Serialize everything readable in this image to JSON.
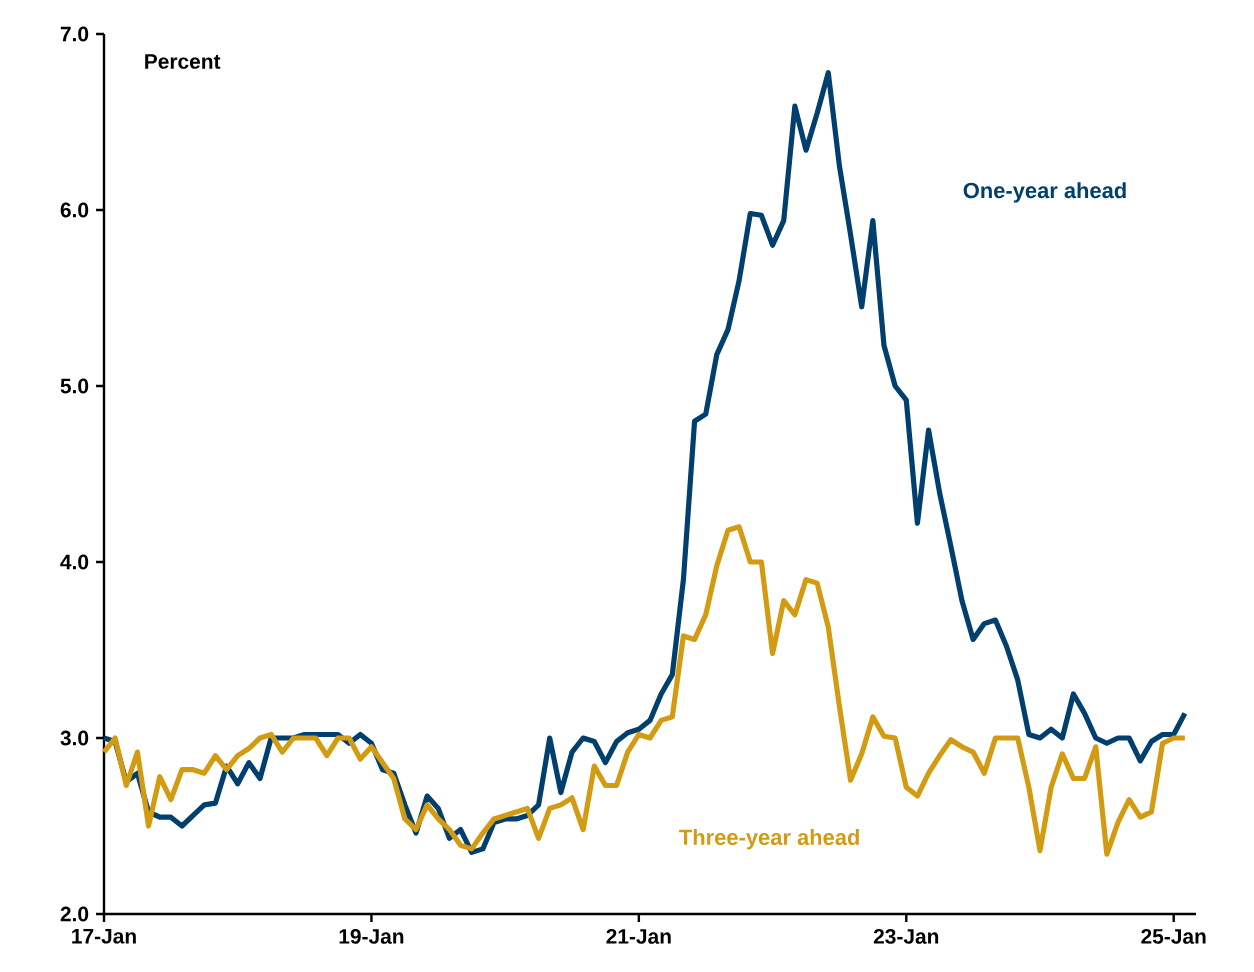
{
  "chart_data": {
    "type": "line",
    "ylabel": "Percent",
    "x": [
      "2017-01",
      "2017-02",
      "2017-03",
      "2017-04",
      "2017-05",
      "2017-06",
      "2017-07",
      "2017-08",
      "2017-09",
      "2017-10",
      "2017-11",
      "2017-12",
      "2018-01",
      "2018-02",
      "2018-03",
      "2018-04",
      "2018-05",
      "2018-06",
      "2018-07",
      "2018-08",
      "2018-09",
      "2018-10",
      "2018-11",
      "2018-12",
      "2019-01",
      "2019-02",
      "2019-03",
      "2019-04",
      "2019-05",
      "2019-06",
      "2019-07",
      "2019-08",
      "2019-09",
      "2019-10",
      "2019-11",
      "2019-12",
      "2020-01",
      "2020-02",
      "2020-03",
      "2020-04",
      "2020-05",
      "2020-06",
      "2020-07",
      "2020-08",
      "2020-09",
      "2020-10",
      "2020-11",
      "2020-12",
      "2021-01",
      "2021-02",
      "2021-03",
      "2021-04",
      "2021-05",
      "2021-06",
      "2021-07",
      "2021-08",
      "2021-09",
      "2021-10",
      "2021-11",
      "2021-12",
      "2022-01",
      "2022-02",
      "2022-03",
      "2022-04",
      "2022-05",
      "2022-06",
      "2022-07",
      "2022-08",
      "2022-09",
      "2022-10",
      "2022-11",
      "2022-12",
      "2023-01",
      "2023-02",
      "2023-03",
      "2023-04",
      "2023-05",
      "2023-06",
      "2023-07",
      "2023-08",
      "2023-09",
      "2023-10",
      "2023-11",
      "2023-12",
      "2024-01",
      "2024-02",
      "2024-03",
      "2024-04",
      "2024-05",
      "2024-06",
      "2024-07",
      "2024-08",
      "2024-09",
      "2024-10",
      "2024-11",
      "2024-12",
      "2025-01",
      "2025-02"
    ],
    "series": [
      {
        "name": "One-year ahead",
        "color": "#003f6e",
        "values": [
          3.0,
          2.98,
          2.75,
          2.8,
          2.58,
          2.55,
          2.55,
          2.5,
          2.56,
          2.62,
          2.63,
          2.84,
          2.74,
          2.86,
          2.77,
          3.0,
          3.0,
          3.0,
          3.02,
          3.02,
          3.02,
          3.02,
          2.97,
          3.02,
          2.97,
          2.82,
          2.8,
          2.62,
          2.46,
          2.67,
          2.6,
          2.43,
          2.48,
          2.35,
          2.37,
          2.52,
          2.54,
          2.54,
          2.56,
          2.62,
          3.0,
          2.69,
          2.92,
          3.0,
          2.98,
          2.86,
          2.98,
          3.03,
          3.05,
          3.1,
          3.25,
          3.36,
          3.9,
          4.8,
          4.84,
          5.18,
          5.32,
          5.6,
          5.98,
          5.97,
          5.8,
          5.94,
          6.59,
          6.34,
          6.55,
          6.78,
          6.25,
          5.86,
          5.45,
          5.94,
          5.23,
          5.0,
          4.92,
          4.22,
          4.75,
          4.39,
          4.09,
          3.78,
          3.56,
          3.65,
          3.67,
          3.52,
          3.33,
          3.02,
          3.0,
          3.05,
          3.0,
          3.25,
          3.14,
          3.0,
          2.97,
          3.0,
          3.0,
          2.87,
          2.98,
          3.02,
          3.02,
          3.14
        ]
      },
      {
        "name": "Three-year ahead",
        "color": "#d39b12",
        "values": [
          2.92,
          3.0,
          2.73,
          2.92,
          2.5,
          2.78,
          2.65,
          2.82,
          2.82,
          2.8,
          2.9,
          2.82,
          2.9,
          2.94,
          3.0,
          3.02,
          2.92,
          3.0,
          3.0,
          3.0,
          2.9,
          3.0,
          3.0,
          2.88,
          2.95,
          2.86,
          2.77,
          2.54,
          2.48,
          2.62,
          2.54,
          2.48,
          2.39,
          2.37,
          2.46,
          2.54,
          2.56,
          2.58,
          2.6,
          2.43,
          2.6,
          2.62,
          2.66,
          2.48,
          2.84,
          2.73,
          2.73,
          2.92,
          3.02,
          3.0,
          3.1,
          3.12,
          3.58,
          3.56,
          3.7,
          3.98,
          4.18,
          4.2,
          4.0,
          4.0,
          3.48,
          3.78,
          3.7,
          3.9,
          3.88,
          3.63,
          3.18,
          2.76,
          2.91,
          3.12,
          3.01,
          3.0,
          2.72,
          2.67,
          2.8,
          2.9,
          2.99,
          2.95,
          2.92,
          2.8,
          3.0,
          3.0,
          3.0,
          2.72,
          2.36,
          2.72,
          2.91,
          2.77,
          2.77,
          2.95,
          2.34,
          2.52,
          2.65,
          2.55,
          2.58,
          2.97,
          3.0,
          3.0
        ]
      }
    ],
    "xlim": [
      "2017-01",
      "2025-03"
    ],
    "xticks": [
      {
        "value": "2017-01",
        "label": "17-Jan"
      },
      {
        "value": "2019-01",
        "label": "19-Jan"
      },
      {
        "value": "2021-01",
        "label": "21-Jan"
      },
      {
        "value": "2023-01",
        "label": "23-Jan"
      },
      {
        "value": "2025-01",
        "label": "25-Jan"
      }
    ],
    "ylim": [
      2.0,
      7.0
    ],
    "yticks": [
      {
        "value": 2.0,
        "label": "2.0"
      },
      {
        "value": 3.0,
        "label": "3.0"
      },
      {
        "value": 4.0,
        "label": "4.0"
      },
      {
        "value": 5.0,
        "label": "5.0"
      },
      {
        "value": 6.0,
        "label": "6.0"
      },
      {
        "value": 7.0,
        "label": "7.0"
      }
    ],
    "grid": false,
    "legend": false,
    "marker": "none",
    "line_style": "solid"
  }
}
